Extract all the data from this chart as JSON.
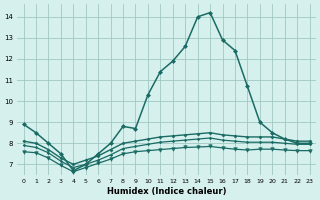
{
  "xlabel": "Humidex (Indice chaleur)",
  "bg_color": "#d6f0ee",
  "grid_color": "#a0c8c4",
  "line_color": "#1a6b64",
  "xlim": [
    -0.5,
    23.5
  ],
  "ylim": [
    6.5,
    14.6
  ],
  "yticks": [
    7,
    8,
    9,
    10,
    11,
    12,
    13,
    14
  ],
  "xticks": [
    0,
    1,
    2,
    3,
    4,
    5,
    6,
    7,
    8,
    9,
    10,
    11,
    12,
    13,
    14,
    15,
    16,
    17,
    18,
    19,
    20,
    21,
    22,
    23
  ],
  "series": [
    {
      "x": [
        0,
        1,
        2,
        3,
        4,
        5,
        6,
        7,
        8,
        9,
        10,
        11,
        12,
        13,
        14,
        15,
        16,
        17,
        18,
        19,
        20,
        21,
        22,
        23
      ],
      "y": [
        8.9,
        8.5,
        8.0,
        7.5,
        6.7,
        7.0,
        7.5,
        8.0,
        8.8,
        8.7,
        10.3,
        11.4,
        11.9,
        12.6,
        14.0,
        14.2,
        12.9,
        12.4,
        10.7,
        9.0,
        8.5,
        8.2,
        8.0,
        8.0
      ],
      "marker": "D",
      "markersize": 2.0,
      "linewidth": 1.1
    },
    {
      "x": [
        0,
        1,
        2,
        3,
        4,
        5,
        6,
        7,
        8,
        9,
        10,
        11,
        12,
        13,
        14,
        15,
        16,
        17,
        18,
        19,
        20,
        21,
        22,
        23
      ],
      "y": [
        8.1,
        8.0,
        7.7,
        7.3,
        7.0,
        7.2,
        7.4,
        7.7,
        8.0,
        8.1,
        8.2,
        8.3,
        8.35,
        8.4,
        8.45,
        8.5,
        8.4,
        8.35,
        8.3,
        8.3,
        8.3,
        8.2,
        8.1,
        8.1
      ],
      "marker": "D",
      "markersize": 1.5,
      "linewidth": 1.0
    },
    {
      "x": [
        0,
        1,
        2,
        3,
        4,
        5,
        6,
        7,
        8,
        9,
        10,
        11,
        12,
        13,
        14,
        15,
        16,
        17,
        18,
        19,
        20,
        21,
        22,
        23
      ],
      "y": [
        7.9,
        7.8,
        7.55,
        7.15,
        6.85,
        7.0,
        7.2,
        7.45,
        7.75,
        7.85,
        7.95,
        8.05,
        8.1,
        8.15,
        8.2,
        8.25,
        8.15,
        8.1,
        8.05,
        8.05,
        8.05,
        8.0,
        7.95,
        7.95
      ],
      "marker": "D",
      "markersize": 1.2,
      "linewidth": 0.9
    },
    {
      "x": [
        0,
        1,
        2,
        3,
        4,
        5,
        6,
        7,
        8,
        9,
        10,
        11,
        12,
        13,
        14,
        15,
        16,
        17,
        18,
        19,
        20,
        21,
        22,
        23
      ],
      "y": [
        7.6,
        7.55,
        7.3,
        6.95,
        6.65,
        6.85,
        7.05,
        7.25,
        7.5,
        7.6,
        7.65,
        7.7,
        7.75,
        7.8,
        7.82,
        7.85,
        7.78,
        7.72,
        7.68,
        7.72,
        7.72,
        7.68,
        7.65,
        7.65
      ],
      "marker": "v",
      "markersize": 2.5,
      "linewidth": 0.9
    }
  ]
}
